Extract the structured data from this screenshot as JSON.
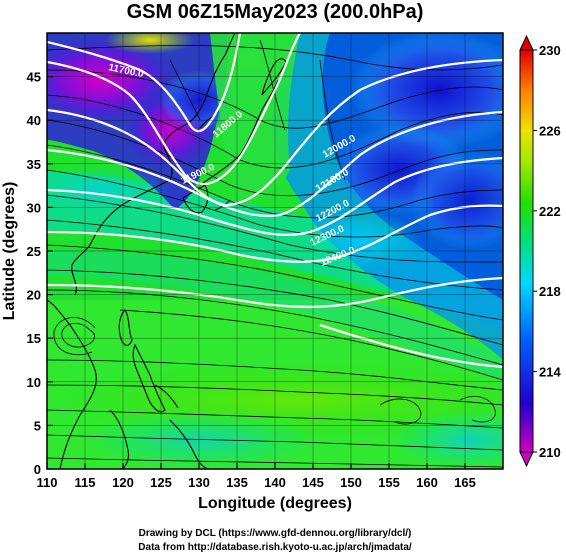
{
  "title": "GSM 06Z15May2023 (200.0hPa)",
  "map": {
    "x_label": "Longitude (degrees)",
    "y_label": "Latitude (degrees)",
    "lon_range": [
      110,
      170
    ],
    "lat_range": [
      0,
      50
    ],
    "x_ticks": [
      "110",
      "115",
      "120",
      "125",
      "130",
      "135",
      "140",
      "145",
      "150",
      "155",
      "160",
      "165"
    ],
    "y_ticks": [
      "0",
      "5",
      "10",
      "15",
      "20",
      "25",
      "30",
      "35",
      "40",
      "45"
    ],
    "contour_labels": [
      "11700.0",
      "11800.0",
      "11900.0",
      "12000.0",
      "12100.0",
      "12200.0",
      "12300.0",
      "12400.0"
    ]
  },
  "colorbar": {
    "range": [
      210,
      230
    ],
    "tick_labels": [
      "230",
      "226",
      "222",
      "218",
      "214",
      "210"
    ],
    "colors": [
      "#c000c0",
      "#0000d8",
      "#00c8ff",
      "#00e000",
      "#e0e000",
      "#ff8000",
      "#e00000"
    ]
  },
  "credits": {
    "line1": "Drawing by DCL (https://www.gfd-dennou.org/library/dcl/)",
    "line2": "Data from http://database.rish.kyoto-u.ac.jp/arch/jmadata/"
  }
}
